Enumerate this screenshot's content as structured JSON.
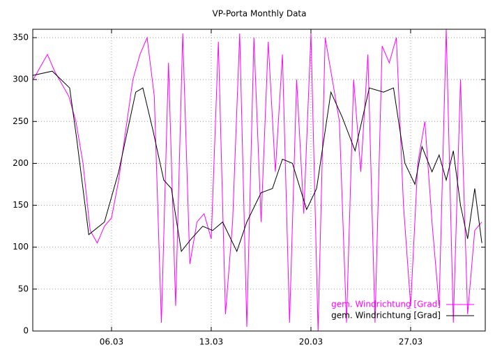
{
  "chart_data": {
    "type": "line",
    "title": "VP-Porta Monthly Data",
    "xlim": [
      0.47,
      32.24
    ],
    "xticks": [
      {
        "value": 6,
        "label": "06.03"
      },
      {
        "value": 13,
        "label": "13.03"
      },
      {
        "value": 20,
        "label": "20.03"
      },
      {
        "value": 27,
        "label": "27.03"
      }
    ],
    "ylim": [
      0,
      360
    ],
    "yticks": [
      0,
      50,
      100,
      150,
      200,
      250,
      300,
      350
    ],
    "grid": true,
    "legend": "bottom-right",
    "series": [
      {
        "name": "gem. Windrichtung [Grad]",
        "color": "#ff00ff",
        "x": [
          0.5,
          1,
          1.5,
          2,
          2.5,
          3,
          3.5,
          4,
          4.5,
          5,
          5.5,
          6,
          6.5,
          7,
          7.5,
          8,
          8.5,
          9,
          9.5,
          10,
          10.5,
          11,
          11.5,
          12,
          12.5,
          13,
          13.5,
          14,
          14.5,
          15,
          15.5,
          16,
          16.5,
          17,
          17.5,
          18,
          18.5,
          19,
          19.5,
          20,
          20.5,
          21,
          21.5,
          22,
          22.5,
          23,
          23.5,
          24,
          24.5,
          25,
          25.5,
          26,
          26.5,
          27,
          27.5,
          28,
          28.5,
          29,
          29.5,
          30,
          30.5,
          31,
          31.5,
          32
        ],
        "values": [
          300,
          315,
          330,
          310,
          295,
          280,
          250,
          200,
          120,
          105,
          125,
          135,
          180,
          240,
          300,
          330,
          350,
          280,
          10,
          320,
          30,
          355,
          80,
          130,
          140,
          110,
          345,
          20,
          130,
          355,
          5,
          350,
          130,
          345,
          190,
          330,
          10,
          300,
          140,
          355,
          0,
          350,
          300,
          250,
          10,
          300,
          190,
          330,
          10,
          340,
          320,
          350,
          150,
          30,
          200,
          250,
          130,
          30,
          360,
          10,
          300,
          20,
          120,
          130
        ]
      },
      {
        "name": "gem. Windrichtung [Grad]",
        "color": "#000000",
        "x": [
          0.47,
          1.84,
          3.06,
          3.55,
          4.4,
          5.5,
          6.5,
          7.7,
          8.2,
          8.9,
          9.67,
          10.2,
          10.9,
          11.6,
          12.4,
          13.1,
          13.8,
          14.8,
          15.5,
          16.5,
          17.3,
          18.0,
          18.7,
          19.7,
          20.4,
          21.4,
          22.2,
          23.1,
          24.1,
          25.1,
          25.8,
          26.6,
          27.3,
          27.8,
          28.5,
          29.0,
          29.5,
          30.0,
          30.5,
          31.0,
          31.5,
          32.0
        ],
        "values": [
          305,
          310,
          290,
          230,
          115,
          130,
          190,
          285,
          290,
          240,
          180,
          170,
          95,
          110,
          125,
          120,
          130,
          95,
          130,
          165,
          170,
          205,
          200,
          145,
          170,
          285,
          255,
          215,
          290,
          285,
          290,
          200,
          175,
          220,
          190,
          210,
          180,
          215,
          150,
          110,
          170,
          105
        ]
      }
    ]
  }
}
